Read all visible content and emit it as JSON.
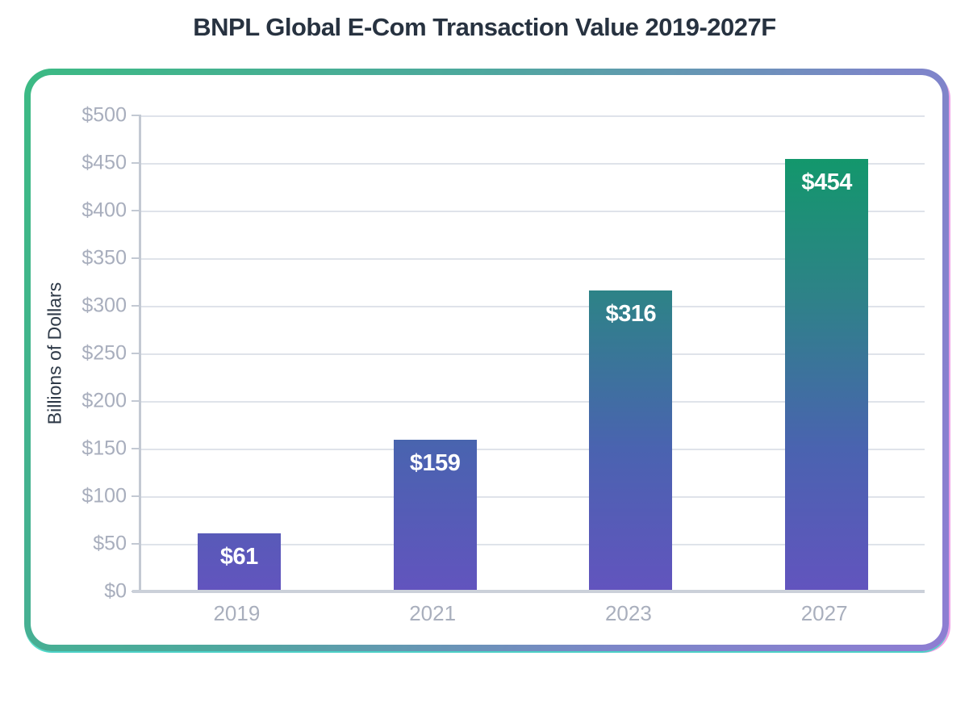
{
  "page": {
    "title": "BNPL Global E-Com Transaction Value 2019-2027F"
  },
  "chart_data": {
    "type": "bar",
    "title": "BNPL Global E-Com Transaction Value 2019-2027F",
    "xlabel": "",
    "ylabel": "Billions of Dollars",
    "categories": [
      "2019",
      "2021",
      "2023",
      "2027"
    ],
    "values": [
      61,
      159,
      316,
      454
    ],
    "bar_value_labels": [
      "$61",
      "$159",
      "$316",
      "$454"
    ],
    "yticks_top_to_bottom": [
      "$500",
      "$450",
      "$400",
      "$350",
      "$300",
      "$250",
      "$200",
      "$150",
      "$100",
      "$50",
      "$0"
    ],
    "ylim": [
      0,
      500
    ],
    "ytick_step": 50,
    "grid": true,
    "legend": "none",
    "colors": {
      "bar_gradient_top": "#0a9e63",
      "bar_gradient_bottom": "#6254be",
      "card_border_gradient_start": "#3cba84",
      "card_border_gradient_end": "#8e7dd3",
      "card_accent_cyan": "#2fd8c0",
      "card_accent_magenta": "#df2ecd",
      "title_color": "#273240",
      "tick_label_color": "#a8aebd",
      "y_axis_title_color": "#2e3947",
      "gridline_color": "#dfe3ea",
      "axis_line_color": "#c3c9d3",
      "bar_label_color": "#ffffff",
      "background": "#ffffff"
    }
  }
}
